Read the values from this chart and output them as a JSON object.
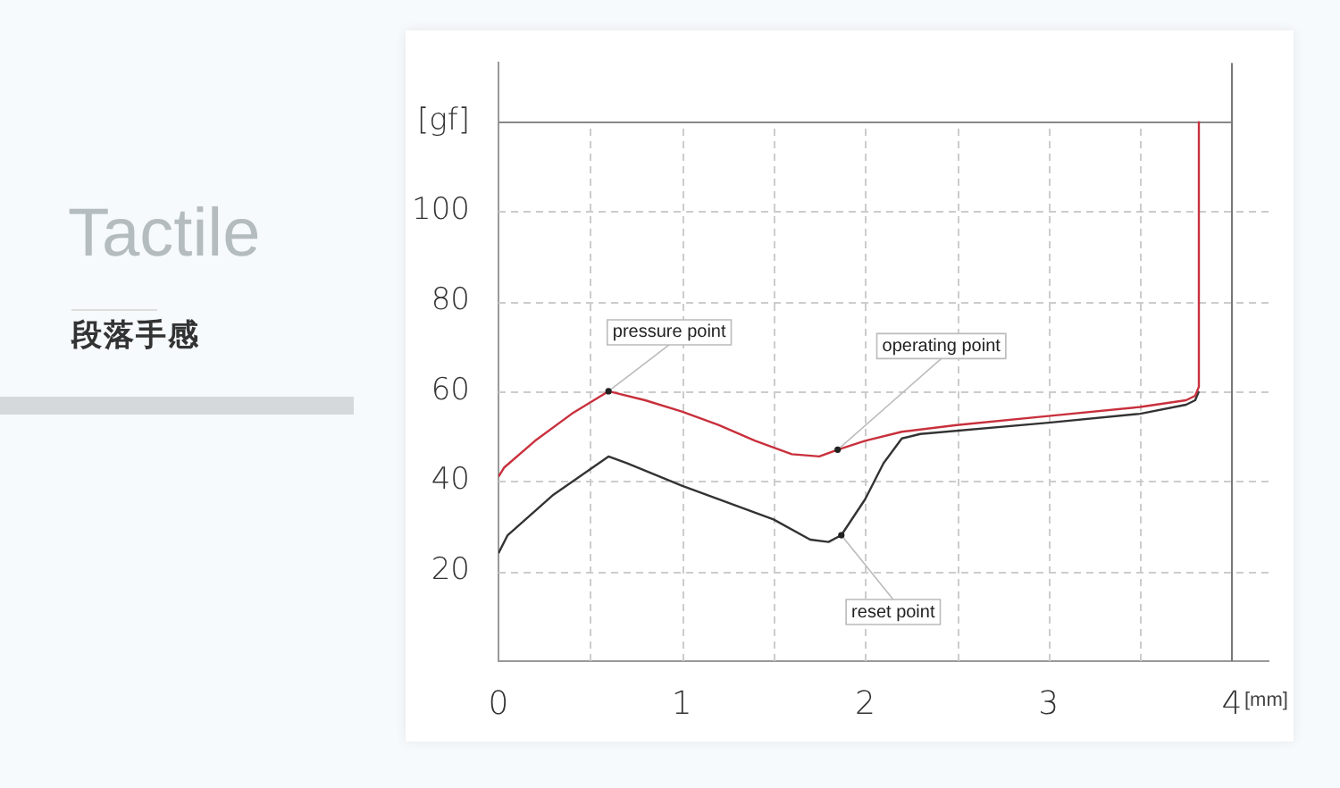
{
  "chart_data": {
    "type": "line",
    "title": "Tactile",
    "subtitle": "段落手感",
    "xlabel": "[mm]",
    "xlim": [
      0,
      4.2
    ],
    "xticks": [
      0,
      {
        "value": 0.5,
        "label": null
      },
      1,
      {
        "value": 1.5,
        "label": null
      },
      2,
      {
        "value": 2.5,
        "label": null
      },
      3,
      {
        "value": 3.5,
        "label": null
      },
      4
    ],
    "ylim": [
      0,
      133
    ],
    "yticks": [
      20,
      40,
      60,
      80,
      100,
      {
        "value": 120,
        "label": "[gf]"
      }
    ],
    "ref_lines": [
      {
        "axis": "y",
        "value": 120,
        "color": "#888888",
        "line_style": "solid"
      },
      {
        "axis": "x",
        "value": 4,
        "color": "#777777",
        "line_style": "solid"
      }
    ],
    "grid": true,
    "legend": false,
    "marker": "none",
    "line_style": "solid",
    "series": [
      {
        "color": "#c8303c",
        "x": [
          0,
          0.03,
          0.2,
          0.4,
          0.6,
          0.8,
          1.0,
          1.2,
          1.4,
          1.6,
          1.75,
          1.85,
          2.0,
          2.2,
          2.5,
          3.0,
          3.5,
          3.75,
          3.8,
          3.82,
          3.82
        ],
        "values": [
          41,
          43,
          49,
          55,
          60,
          58,
          55.5,
          52.5,
          49,
          46,
          45.5,
          47,
          49,
          51,
          52.5,
          54.5,
          56.5,
          58,
          59,
          61,
          120
        ]
      },
      {
        "color": "#333333",
        "x": [
          0,
          0.05,
          0.3,
          0.6,
          0.7,
          1.0,
          1.5,
          1.7,
          1.8,
          1.87,
          2.0,
          2.1,
          2.2,
          2.3,
          3.0,
          3.5,
          3.75,
          3.8,
          3.82
        ],
        "values": [
          24,
          28,
          37,
          45.5,
          44,
          39,
          31.5,
          27,
          26.5,
          28,
          36,
          44,
          49.5,
          50.5,
          53,
          55,
          57,
          58,
          60
        ]
      }
    ],
    "annotations": [
      {
        "text": "pressure point",
        "x": 0.6,
        "y": 60
      },
      {
        "text": "operating point",
        "x": 1.85,
        "y": 47
      },
      {
        "text": "reset point",
        "x": 1.87,
        "y": 28
      }
    ]
  }
}
